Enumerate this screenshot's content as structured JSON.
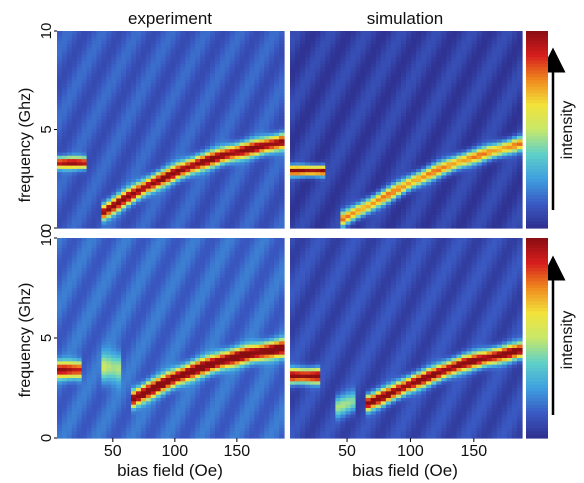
{
  "figure": {
    "col_titles": [
      "experiment",
      "simulation"
    ],
    "ylabel": "frequency (Ghz)",
    "xlabel": "bias field (Oe)",
    "colorbar_label": "intensity"
  },
  "colormap": [
    "#2e2f8f",
    "#3a5bc4",
    "#3fa0e0",
    "#5fd0c8",
    "#c8e86a",
    "#f2e23a",
    "#f08a1e",
    "#d61e1e",
    "#8a0d12"
  ],
  "chart_data": [
    {
      "type": "heatmap",
      "panel": "top-left",
      "title": "experiment",
      "xlabel": "",
      "ylabel": "frequency (Ghz)",
      "xlim": [
        5,
        188
      ],
      "ylim": [
        0,
        10
      ],
      "x_ticks": [],
      "y_ticks": [
        0,
        5,
        10
      ],
      "background": 0.12,
      "modes": [
        {
          "x": [
            5,
            30
          ],
          "y": [
            3.3,
            3.3
          ],
          "intensity": 0.85,
          "width": 0.28
        },
        {
          "x": [
            40,
            60,
            80,
            100,
            120,
            140,
            160,
            188
          ],
          "y": [
            0.7,
            1.5,
            2.2,
            2.8,
            3.3,
            3.7,
            4.0,
            4.4
          ],
          "intensity": 0.9,
          "width": 0.38
        }
      ]
    },
    {
      "type": "heatmap",
      "panel": "top-right",
      "title": "simulation",
      "xlabel": "",
      "ylabel": "",
      "xlim": [
        5,
        188
      ],
      "ylim": [
        0,
        10
      ],
      "x_ticks": [],
      "y_ticks": [],
      "background": 0.05,
      "modes": [
        {
          "x": [
            5,
            32
          ],
          "y": [
            2.9,
            2.9
          ],
          "intensity": 0.95,
          "width": 0.25
        },
        {
          "x": [
            45,
            60,
            80,
            100,
            120,
            140,
            160,
            188
          ],
          "y": [
            0.4,
            0.9,
            1.6,
            2.3,
            2.9,
            3.4,
            3.8,
            4.3
          ],
          "intensity": 0.7,
          "width": 0.35
        }
      ]
    },
    {
      "type": "heatmap",
      "panel": "bottom-left",
      "title": "",
      "xlabel": "bias field (Oe)",
      "ylabel": "frequency (Ghz)",
      "xlim": [
        5,
        188
      ],
      "ylim": [
        0,
        10
      ],
      "x_ticks": [
        50,
        100,
        150
      ],
      "y_ticks": [
        0,
        5,
        10
      ],
      "background": 0.15,
      "modes": [
        {
          "x": [
            5,
            25
          ],
          "y": [
            3.4,
            3.4
          ],
          "intensity": 0.8,
          "width": 0.4
        },
        {
          "x": [
            40,
            55
          ],
          "y": [
            3.5,
            3.5
          ],
          "intensity": 0.35,
          "width": 0.7
        },
        {
          "x": [
            65,
            80,
            100,
            120,
            140,
            160,
            188
          ],
          "y": [
            1.9,
            2.4,
            3.0,
            3.5,
            3.9,
            4.2,
            4.5
          ],
          "intensity": 0.95,
          "width": 0.4
        }
      ]
    },
    {
      "type": "heatmap",
      "panel": "bottom-right",
      "title": "",
      "xlabel": "bias field (Oe)",
      "ylabel": "",
      "xlim": [
        5,
        188
      ],
      "ylim": [
        0,
        10
      ],
      "x_ticks": [
        50,
        100,
        150
      ],
      "y_ticks": [],
      "background": 0.08,
      "modes": [
        {
          "x": [
            5,
            30
          ],
          "y": [
            3.1,
            3.1
          ],
          "intensity": 0.95,
          "width": 0.35
        },
        {
          "x": [
            40,
            55
          ],
          "y": [
            1.5,
            1.8
          ],
          "intensity": 0.35,
          "width": 0.5
        },
        {
          "x": [
            65,
            80,
            100,
            120,
            140,
            160,
            188
          ],
          "y": [
            1.7,
            2.1,
            2.7,
            3.2,
            3.7,
            4.0,
            4.4
          ],
          "intensity": 0.95,
          "width": 0.38
        }
      ]
    }
  ]
}
